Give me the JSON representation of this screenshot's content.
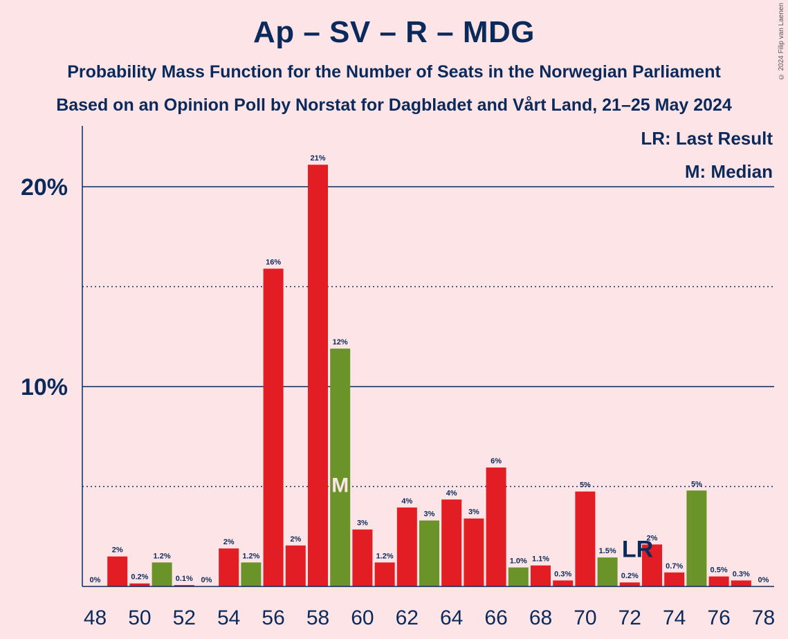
{
  "chart_data": {
    "type": "bar",
    "title": "Ap – SV – R – MDG",
    "subtitle": [
      "Probability Mass Function for the Number of Seats in the Norwegian Parliament",
      "Based on an Opinion Poll by Norstat for Dagbladet and Vårt Land, 21–25 May 2024"
    ],
    "copyright": "© 2024 Filip van Laenen",
    "legend": {
      "placement": "top-right",
      "entries": [
        "LR: Last Result",
        "M: Median"
      ]
    },
    "xlabel": "",
    "ylabel": "",
    "xlim": [
      48,
      78
    ],
    "ylim": [
      0,
      23
    ],
    "yticks": [
      {
        "value": 10,
        "label": "10%"
      },
      {
        "value": 20,
        "label": "20%"
      }
    ],
    "ygrid_dotted": [
      5,
      15
    ],
    "xtick_labels": [
      "48",
      "50",
      "52",
      "54",
      "56",
      "58",
      "60",
      "62",
      "64",
      "66",
      "68",
      "70",
      "72",
      "74",
      "76",
      "78"
    ],
    "colors": {
      "red": "#e21d24",
      "green": "#6a9429",
      "text": "#0b2a5c",
      "background": "#fde4e6"
    },
    "median": {
      "seats": 59,
      "label": "M"
    },
    "last_result": {
      "seats": 73,
      "label": "LR"
    },
    "bars": [
      {
        "x": 48,
        "value": 0.0,
        "label": "0%",
        "color": "red"
      },
      {
        "x": 49,
        "value": 1.5,
        "label": "2%",
        "color": "red"
      },
      {
        "x": 50,
        "value": 0.15,
        "label": "0.2%",
        "color": "red"
      },
      {
        "x": 51,
        "value": 1.2,
        "label": "1.2%",
        "color": "green"
      },
      {
        "x": 52,
        "value": 0.07,
        "label": "0.1%",
        "color": "red"
      },
      {
        "x": 53,
        "value": 0.0,
        "label": "0%",
        "color": "red"
      },
      {
        "x": 54,
        "value": 1.9,
        "label": "2%",
        "color": "red"
      },
      {
        "x": 55,
        "value": 1.2,
        "label": "1.2%",
        "color": "green"
      },
      {
        "x": 56,
        "value": 15.9,
        "label": "16%",
        "color": "red"
      },
      {
        "x": 57,
        "value": 2.05,
        "label": "2%",
        "color": "red"
      },
      {
        "x": 58,
        "value": 21.1,
        "label": "21%",
        "color": "red"
      },
      {
        "x": 59,
        "value": 11.9,
        "label": "12%",
        "color": "green"
      },
      {
        "x": 60,
        "value": 2.85,
        "label": "3%",
        "color": "red"
      },
      {
        "x": 61,
        "value": 1.2,
        "label": "1.2%",
        "color": "red"
      },
      {
        "x": 62,
        "value": 3.95,
        "label": "4%",
        "color": "red"
      },
      {
        "x": 63,
        "value": 3.3,
        "label": "3%",
        "color": "green"
      },
      {
        "x": 64,
        "value": 4.35,
        "label": "4%",
        "color": "red"
      },
      {
        "x": 65,
        "value": 3.4,
        "label": "3%",
        "color": "red"
      },
      {
        "x": 66,
        "value": 5.95,
        "label": "6%",
        "color": "red"
      },
      {
        "x": 67,
        "value": 0.95,
        "label": "1.0%",
        "color": "green"
      },
      {
        "x": 68,
        "value": 1.05,
        "label": "1.1%",
        "color": "red"
      },
      {
        "x": 69,
        "value": 0.3,
        "label": "0.3%",
        "color": "red"
      },
      {
        "x": 70,
        "value": 4.75,
        "label": "5%",
        "color": "red"
      },
      {
        "x": 71,
        "value": 1.45,
        "label": "1.5%",
        "color": "green"
      },
      {
        "x": 72,
        "value": 0.2,
        "label": "0.2%",
        "color": "red"
      },
      {
        "x": 73,
        "value": 2.1,
        "label": "2%",
        "color": "red"
      },
      {
        "x": 74,
        "value": 0.7,
        "label": "0.7%",
        "color": "red"
      },
      {
        "x": 75,
        "value": 4.8,
        "label": "5%",
        "color": "green"
      },
      {
        "x": 76,
        "value": 0.5,
        "label": "0.5%",
        "color": "red"
      },
      {
        "x": 77,
        "value": 0.3,
        "label": "0.3%",
        "color": "red"
      },
      {
        "x": 78,
        "value": 0.0,
        "label": "0%",
        "color": "red"
      }
    ]
  }
}
